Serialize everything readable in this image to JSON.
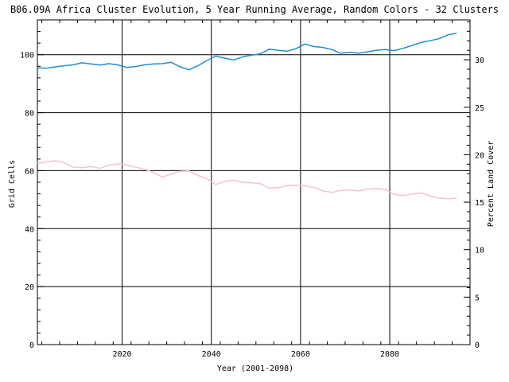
{
  "chart_data": {
    "type": "line",
    "title": "B06.09A Africa Cluster Evolution, 5 Year Running Average, Random Colors - 32 Clusters",
    "xlabel": "Year (2001-2098)",
    "ylabel": "Grid Cells",
    "y2label": "Percent Land Cover",
    "xlim": [
      2001,
      2098
    ],
    "ylim": [
      0,
      112
    ],
    "y2lim": [
      0,
      34.2
    ],
    "x_ticks": [
      2020,
      2040,
      2060,
      2080
    ],
    "y_ticks": [
      0,
      20,
      40,
      60,
      80,
      100
    ],
    "y2_ticks": [
      0,
      5,
      10,
      15,
      20,
      25,
      30
    ],
    "grid": true,
    "series": [
      {
        "color": "#1f8fcf",
        "x": [
          2001,
          2003,
          2005,
          2007,
          2009,
          2011,
          2013,
          2015,
          2017,
          2019,
          2021,
          2023,
          2025,
          2027,
          2029,
          2031,
          2033,
          2035,
          2037,
          2039,
          2041,
          2043,
          2045,
          2047,
          2049,
          2051,
          2053,
          2055,
          2057,
          2059,
          2061,
          2063,
          2065,
          2067,
          2069,
          2071,
          2073,
          2075,
          2077,
          2079,
          2081,
          2083,
          2085,
          2087,
          2089,
          2091,
          2093,
          2095
        ],
        "values": [
          95.5,
          95.3,
          95.8,
          96.2,
          96.5,
          97.2,
          96.8,
          96.4,
          96.9,
          96.5,
          95.6,
          95.9,
          96.5,
          96.8,
          96.9,
          97.4,
          95.8,
          94.8,
          96.2,
          98.0,
          99.5,
          98.8,
          98.2,
          99.2,
          99.8,
          100.3,
          101.9,
          101.5,
          101.2,
          102.1,
          103.7,
          102.8,
          102.5,
          101.8,
          100.5,
          100.8,
          100.5,
          101.0,
          101.5,
          101.8,
          101.4,
          102.2,
          103.2,
          104.2,
          104.8,
          105.5,
          106.8,
          107.4
        ]
      },
      {
        "color": "#f4c2d8",
        "x": [
          2001,
          2003,
          2005,
          2007,
          2009,
          2011,
          2013,
          2015,
          2017,
          2019,
          2021,
          2023,
          2025,
          2027,
          2029,
          2031,
          2033,
          2035,
          2037,
          2039,
          2041,
          2043,
          2045,
          2047,
          2049,
          2051,
          2053,
          2055,
          2057,
          2059,
          2061,
          2063,
          2065,
          2067,
          2069,
          2071,
          2073,
          2075,
          2077,
          2079,
          2081,
          2083,
          2085,
          2087,
          2089,
          2091,
          2093,
          2095
        ],
        "values": [
          62.5,
          63.0,
          63.4,
          62.8,
          61.2,
          61.0,
          61.4,
          60.8,
          61.8,
          62.3,
          62.0,
          61.2,
          60.5,
          59.4,
          57.8,
          58.8,
          59.8,
          59.9,
          58.3,
          57.2,
          55.2,
          56.3,
          56.8,
          56.0,
          55.8,
          55.5,
          54.0,
          54.2,
          54.8,
          55.0,
          54.8,
          54.2,
          53.0,
          52.5,
          53.2,
          53.4,
          53.0,
          53.6,
          53.9,
          53.5,
          51.8,
          51.4,
          51.9,
          52.3,
          51.3,
          50.6,
          50.3,
          50.5
        ]
      }
    ]
  }
}
